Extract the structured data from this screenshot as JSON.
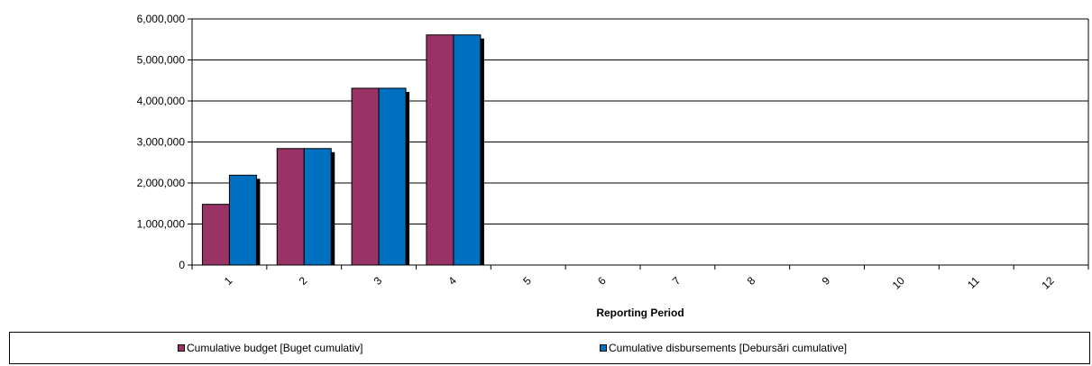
{
  "chart_data": {
    "type": "bar",
    "categories": [
      "1",
      "2",
      "3",
      "4",
      "5",
      "6",
      "7",
      "8",
      "9",
      "10",
      "11",
      "12"
    ],
    "series": [
      {
        "name": "Cumulative budget [Buget cumulativ]",
        "color": "#993366",
        "values": [
          1480000,
          2840000,
          4310000,
          5610000,
          0,
          0,
          0,
          0,
          0,
          0,
          0,
          0
        ]
      },
      {
        "name": "Cumulative disbursements [Debursări cumulative]",
        "color": "#0070C0",
        "values": [
          2190000,
          2840000,
          4310000,
          5610000,
          0,
          0,
          0,
          0,
          0,
          0,
          0,
          0
        ]
      }
    ],
    "xlabel": "Reporting Period",
    "ylabel": "",
    "ylim": [
      0,
      6000000
    ],
    "yticks": [
      "0",
      "1,000,000",
      "2,000,000",
      "3,000,000",
      "4,000,000",
      "5,000,000",
      "6,000,000"
    ],
    "grid": true,
    "legend_position": "bottom"
  }
}
